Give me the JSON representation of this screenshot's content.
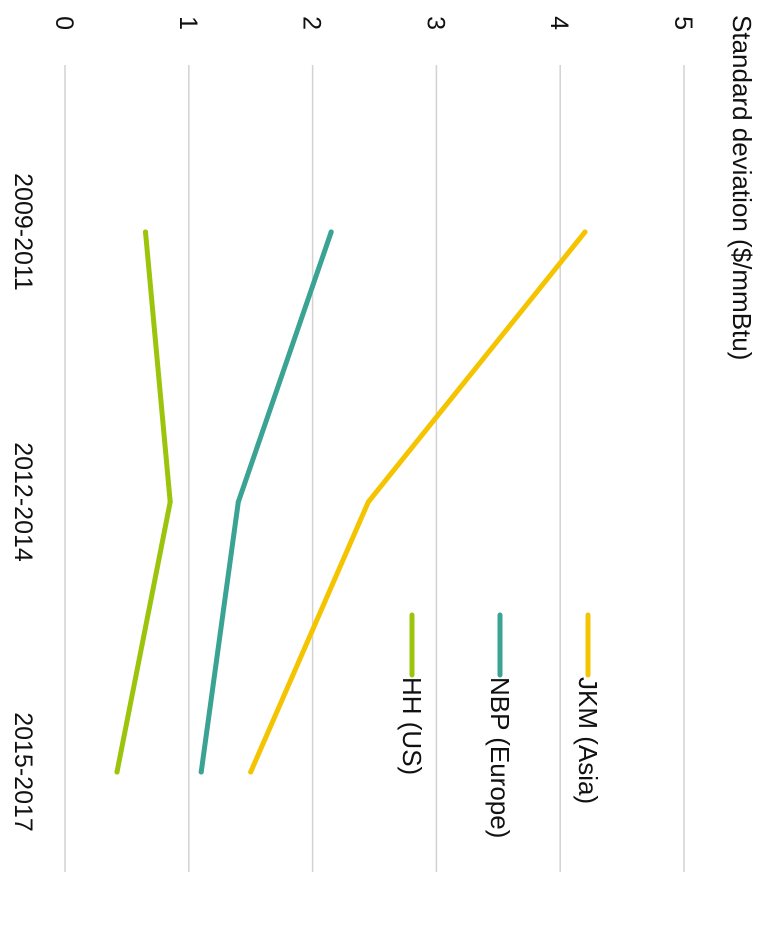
{
  "chart_data": {
    "type": "line",
    "ylabel": "Standard deviation ($/mmBtu)",
    "xlabel": "",
    "ylim": [
      0,
      5
    ],
    "y_ticks": [
      "0",
      "1",
      "2",
      "3",
      "4",
      "5"
    ],
    "categories": [
      "2009-2011",
      "2012-2014",
      "2015-2017"
    ],
    "grid": true,
    "legend_position": "right",
    "orientation": "rotated 90 degrees clockwise",
    "series": [
      {
        "name": "JKM (Asia)",
        "color": "#f5c400",
        "values": [
          4.2,
          2.45,
          1.5
        ]
      },
      {
        "name": "NBP (Europe)",
        "color": "#3aa393",
        "values": [
          2.15,
          1.4,
          1.1
        ]
      },
      {
        "name": "HH (US)",
        "color": "#9cc40c",
        "values": [
          0.65,
          0.85,
          0.42
        ]
      }
    ]
  }
}
